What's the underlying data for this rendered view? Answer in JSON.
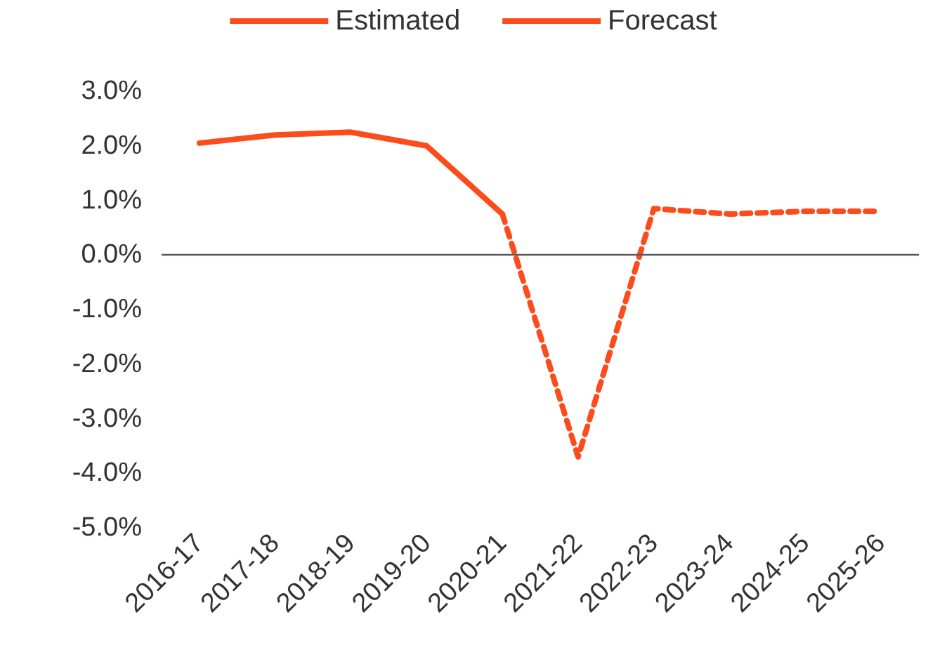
{
  "chart_data": {
    "type": "line",
    "categories": [
      "2016-17",
      "2017-18",
      "2018-19",
      "2019-20",
      "2020-21",
      "2021-22",
      "2022-23",
      "2023-24",
      "2024-25",
      "2025-26"
    ],
    "series": [
      {
        "name": "Estimated",
        "color": "#fc4c1c",
        "line_style": "solid",
        "values": [
          2.05,
          2.2,
          2.25,
          2.0,
          0.75,
          null,
          null,
          null,
          null,
          null
        ]
      },
      {
        "name": "Forecast",
        "color": "#fc4c1c",
        "line_style": "dashed",
        "values": [
          null,
          null,
          null,
          null,
          0.75,
          -3.7,
          0.85,
          0.75,
          0.8,
          0.8
        ]
      }
    ],
    "ylim": [
      -5,
      3
    ],
    "yticks": [
      {
        "value": -5,
        "label": "-5.0%"
      },
      {
        "value": -4,
        "label": "-4.0%"
      },
      {
        "value": -3,
        "label": "-3.0%"
      },
      {
        "value": -2,
        "label": "-2.0%"
      },
      {
        "value": -1,
        "label": "-1.0%"
      },
      {
        "value": 0,
        "label": "0.0%"
      },
      {
        "value": 1,
        "label": "1.0%"
      },
      {
        "value": 2,
        "label": "2.0%"
      },
      {
        "value": 3,
        "label": "3.0%"
      }
    ],
    "ref_lines": [
      {
        "axis": "y",
        "value": 0,
        "label": null,
        "color": "#595959"
      }
    ],
    "grid": false,
    "legend": "top",
    "marker": "none"
  }
}
